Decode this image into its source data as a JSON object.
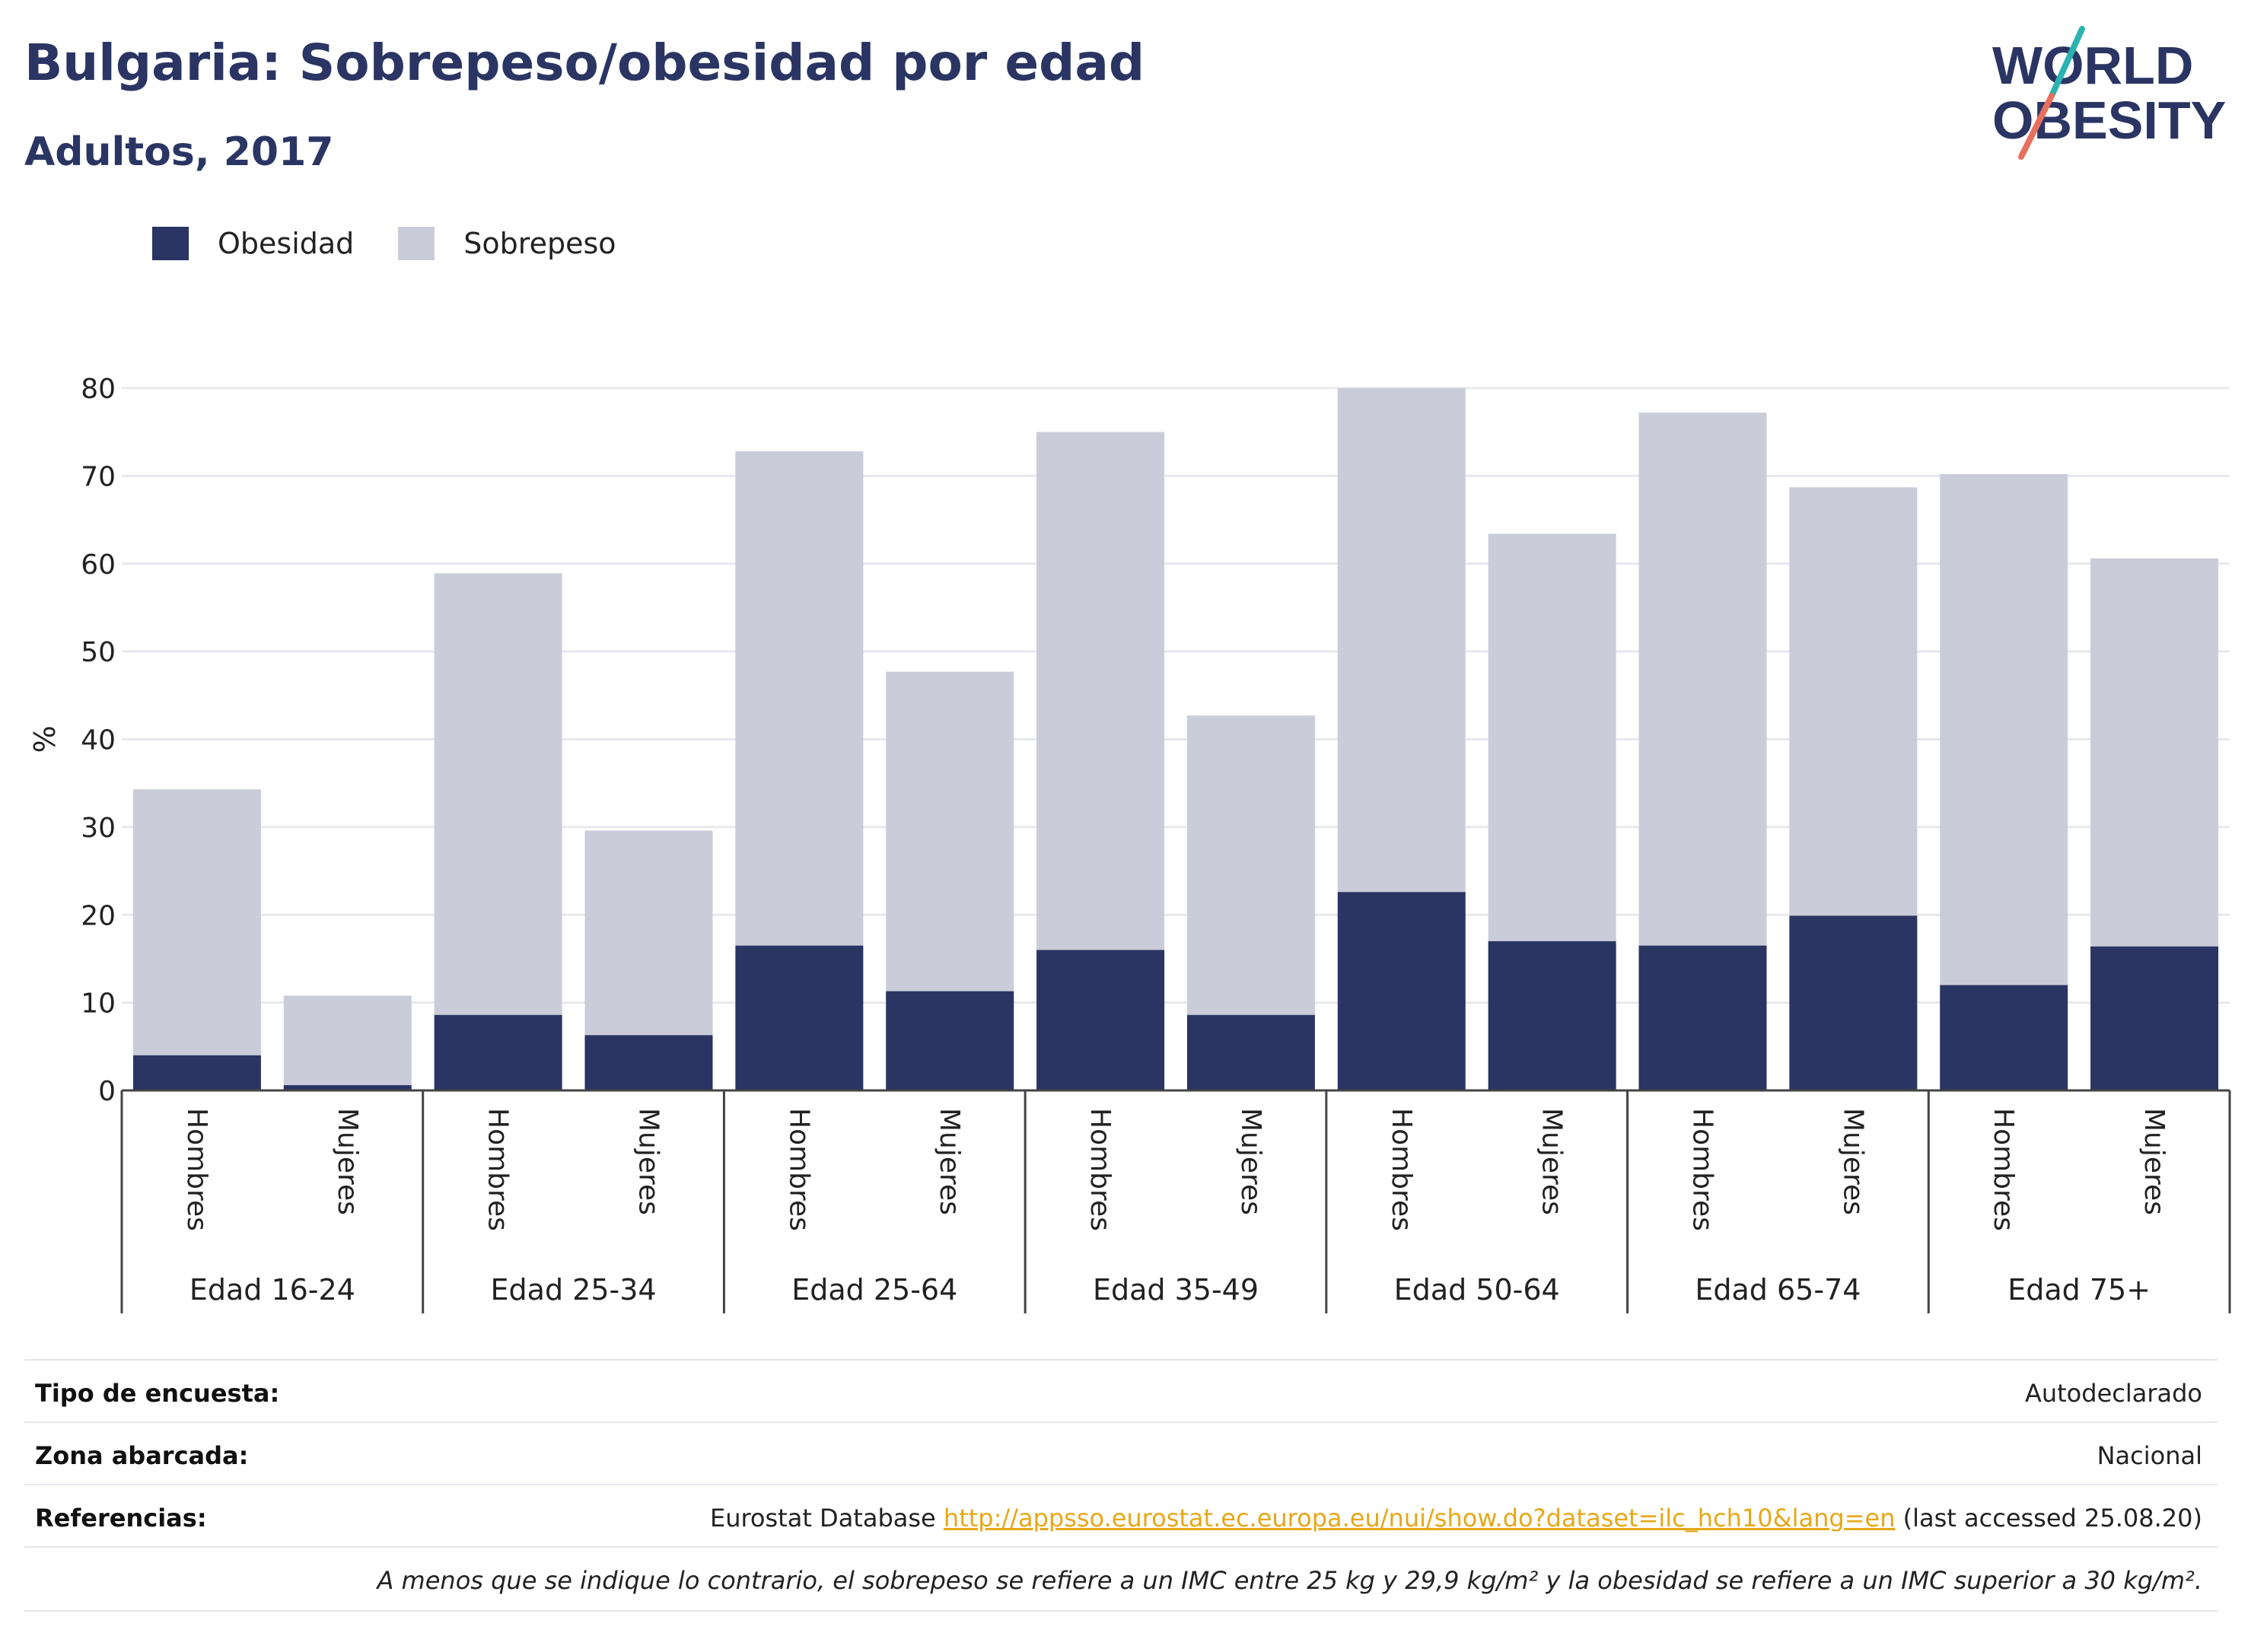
{
  "header": {
    "title": "Bulgaria: Sobrepeso/obesidad por edad",
    "subtitle": "Adultos, 2017"
  },
  "logo": {
    "line1": "WORLD",
    "line2": "OBESITY"
  },
  "colors": {
    "obesity": "#2a3563",
    "overweight": "#cacdd9",
    "text": "#2a3563",
    "link": "#e6a817",
    "grid": "#e8e8ee"
  },
  "chart_data": {
    "type": "bar",
    "stacked": true,
    "ylabel": "%",
    "ylim": [
      0,
      80
    ],
    "yticks": [
      0,
      10,
      20,
      30,
      40,
      50,
      60,
      70,
      80
    ],
    "grid": true,
    "legend_position": "top-left",
    "groups": [
      "Edad 16-24",
      "Edad 25-34",
      "Edad 25-64",
      "Edad 35-49",
      "Edad 50-64",
      "Edad 65-74",
      "Edad 75+"
    ],
    "categories": [
      "Hombres",
      "Mujeres",
      "Hombres",
      "Mujeres",
      "Hombres",
      "Mujeres",
      "Hombres",
      "Mujeres",
      "Hombres",
      "Mujeres",
      "Hombres",
      "Mujeres",
      "Hombres",
      "Mujeres"
    ],
    "series": [
      {
        "name": "Obesidad",
        "values": [
          4.0,
          0.6,
          8.6,
          6.3,
          16.5,
          11.3,
          16.0,
          8.6,
          22.6,
          17.0,
          16.5,
          19.9,
          12.0,
          16.4
        ]
      },
      {
        "name": "Sobrepeso",
        "values": [
          30.3,
          10.2,
          50.3,
          23.3,
          56.3,
          36.4,
          59.0,
          34.1,
          57.4,
          46.4,
          60.7,
          48.8,
          58.2,
          44.2
        ]
      }
    ]
  },
  "info": {
    "survey_label": "Tipo de encuesta:",
    "survey_value": "Autodeclarado",
    "area_label": "Zona abarcada:",
    "area_value": "Nacional",
    "refs_label": "Referencias:",
    "refs_prefix": "Eurostat Database ",
    "refs_link": "http://appsso.eurostat.ec.europa.eu/nui/show.do?dataset=ilc_hch10&lang=en",
    "refs_suffix": " (last accessed 25.08.20)",
    "note": "A menos que se indique lo contrario, el sobrepeso se refiere a un IMC entre 25 kg y 29,9 kg/m² y la obesidad se refiere a un IMC superior a 30 kg/m²."
  }
}
